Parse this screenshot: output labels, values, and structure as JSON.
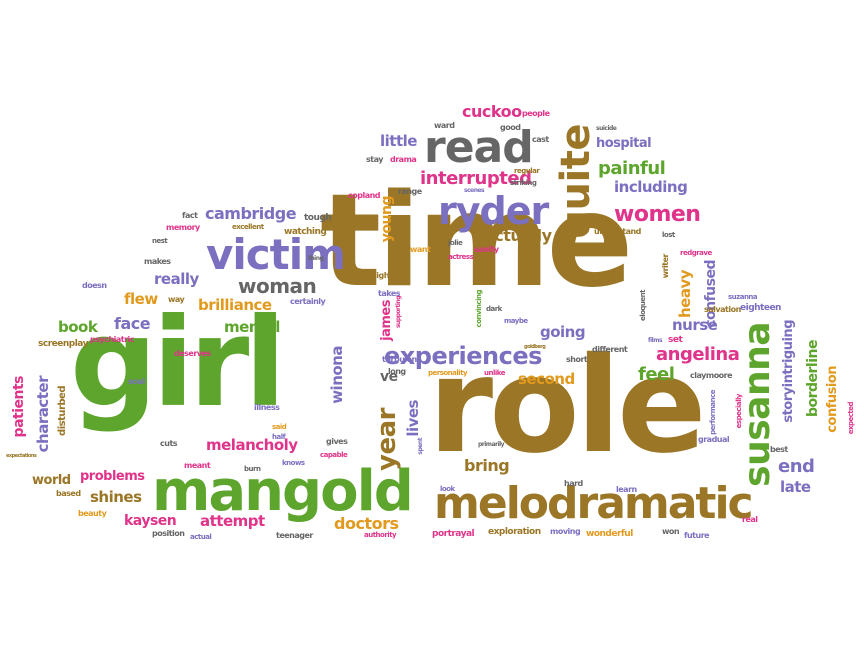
{
  "cloud": {
    "colors": {
      "brown": "#9a7626",
      "green": "#5da52c",
      "purple": "#7b6fc0",
      "pink": "#e0338a",
      "orange": "#e29a1e",
      "gray": "#666666"
    },
    "words": [
      {
        "text": "time",
        "color": "#9a7626"
      },
      {
        "text": "role",
        "color": "#9a7626"
      },
      {
        "text": "girl",
        "color": "#5da52c"
      },
      {
        "text": "mangold",
        "color": "#5da52c"
      },
      {
        "text": "melodramatic",
        "color": "#9a7626"
      },
      {
        "text": "victim",
        "color": "#7b6fc0"
      },
      {
        "text": "read",
        "color": "#666666"
      },
      {
        "text": "ryder",
        "color": "#7b6fc0"
      },
      {
        "text": "quite",
        "color": "#9a7626"
      },
      {
        "text": "susanna",
        "color": "#5da52c"
      },
      {
        "text": "experiences",
        "color": "#7b6fc0"
      },
      {
        "text": "year",
        "color": "#9a7626"
      },
      {
        "text": "women",
        "color": "#e0338a"
      },
      {
        "text": "interrupted",
        "color": "#e0338a"
      },
      {
        "text": "cambridge",
        "color": "#7b6fc0"
      },
      {
        "text": "woman",
        "color": "#666666"
      },
      {
        "text": "cuckoo",
        "color": "#e0338a"
      },
      {
        "text": "little",
        "color": "#7b6fc0"
      },
      {
        "text": "painful",
        "color": "#5da52c"
      },
      {
        "text": "including",
        "color": "#7b6fc0"
      },
      {
        "text": "hospital",
        "color": "#7b6fc0"
      },
      {
        "text": "actually",
        "color": "#9a7626"
      },
      {
        "text": "angelina",
        "color": "#e0338a"
      },
      {
        "text": "melancholy",
        "color": "#e0338a"
      },
      {
        "text": "doctors",
        "color": "#e29a1e"
      },
      {
        "text": "attempt",
        "color": "#e0338a"
      },
      {
        "text": "brilliance",
        "color": "#e29a1e"
      },
      {
        "text": "really",
        "color": "#7b6fc0"
      },
      {
        "text": "mental",
        "color": "#5da52c"
      },
      {
        "text": "face",
        "color": "#7b6fc0"
      },
      {
        "text": "book",
        "color": "#5da52c"
      },
      {
        "text": "flew",
        "color": "#e29a1e"
      },
      {
        "text": "end",
        "color": "#7b6fc0"
      },
      {
        "text": "late",
        "color": "#7b6fc0"
      },
      {
        "text": "feel",
        "color": "#5da52c"
      },
      {
        "text": "nurse",
        "color": "#7b6fc0"
      },
      {
        "text": "going",
        "color": "#7b6fc0"
      },
      {
        "text": "second",
        "color": "#e29a1e"
      },
      {
        "text": "bring",
        "color": "#9a7626"
      },
      {
        "text": "lives",
        "color": "#7b6fc0"
      },
      {
        "text": "ve",
        "color": "#666666"
      },
      {
        "text": "winona",
        "color": "#7b6fc0"
      },
      {
        "text": "james",
        "color": "#e0338a"
      },
      {
        "text": "young",
        "color": "#e29a1e"
      },
      {
        "text": "heavy",
        "color": "#e29a1e"
      },
      {
        "text": "confused",
        "color": "#7b6fc0"
      },
      {
        "text": "storyintriguing",
        "color": "#7b6fc0"
      },
      {
        "text": "borderline",
        "color": "#5da52c"
      },
      {
        "text": "confusion",
        "color": "#e29a1e"
      },
      {
        "text": "world",
        "color": "#9a7626"
      },
      {
        "text": "problems",
        "color": "#e0338a"
      },
      {
        "text": "shines",
        "color": "#9a7626"
      },
      {
        "text": "kaysen",
        "color": "#e0338a"
      },
      {
        "text": "character",
        "color": "#7b6fc0"
      },
      {
        "text": "patients",
        "color": "#e0338a"
      },
      {
        "text": "disturbed",
        "color": "#9a7626"
      },
      {
        "text": "screenplay",
        "color": "#9a7626"
      },
      {
        "text": "psychiatric",
        "color": "#e0338a"
      },
      {
        "text": "deserves",
        "color": "#e0338a"
      },
      {
        "text": "soul",
        "color": "#7b6fc0"
      },
      {
        "text": "illness",
        "color": "#7b6fc0"
      },
      {
        "text": "cuts",
        "color": "#666666"
      },
      {
        "text": "meant",
        "color": "#e0338a"
      },
      {
        "text": "based",
        "color": "#9a7626"
      },
      {
        "text": "beauty",
        "color": "#e29a1e"
      },
      {
        "text": "position",
        "color": "#666666"
      },
      {
        "text": "actual",
        "color": "#7b6fc0"
      },
      {
        "text": "teenager",
        "color": "#666666"
      },
      {
        "text": "authority",
        "color": "#e0338a"
      },
      {
        "text": "portrayal",
        "color": "#e0338a"
      },
      {
        "text": "exploration",
        "color": "#9a7626"
      },
      {
        "text": "moving",
        "color": "#7b6fc0"
      },
      {
        "text": "wonderful",
        "color": "#e29a1e"
      },
      {
        "text": "won",
        "color": "#666666"
      },
      {
        "text": "future",
        "color": "#7b6fc0"
      },
      {
        "text": "real",
        "color": "#e0338a"
      },
      {
        "text": "gradual",
        "color": "#7b6fc0"
      },
      {
        "text": "best",
        "color": "#666666"
      },
      {
        "text": "set",
        "color": "#e0338a"
      },
      {
        "text": "films",
        "color": "#7b6fc0"
      },
      {
        "text": "claymoore",
        "color": "#666666"
      },
      {
        "text": "eighteen",
        "color": "#7b6fc0"
      },
      {
        "text": "salvation",
        "color": "#9a7626"
      },
      {
        "text": "suzanna",
        "color": "#7b6fc0"
      },
      {
        "text": "especially",
        "color": "#e0338a"
      },
      {
        "text": "performance",
        "color": "#7b6fc0"
      },
      {
        "text": "eloquent",
        "color": "#666666"
      },
      {
        "text": "writer",
        "color": "#9a7626"
      },
      {
        "text": "redgrave",
        "color": "#e0338a"
      },
      {
        "text": "lost",
        "color": "#666666"
      },
      {
        "text": "understand",
        "color": "#9a7626"
      },
      {
        "text": "sanity",
        "color": "#e0338a"
      },
      {
        "text": "jolie",
        "color": "#666666"
      },
      {
        "text": "actress",
        "color": "#e0338a"
      },
      {
        "text": "want",
        "color": "#e29a1e"
      },
      {
        "text": "light",
        "color": "#9a7626"
      },
      {
        "text": "takes",
        "color": "#7b6fc0"
      },
      {
        "text": "supporting",
        "color": "#e0338a"
      },
      {
        "text": "convincing",
        "color": "#5da52c"
      },
      {
        "text": "dark",
        "color": "#666666"
      },
      {
        "text": "maybe",
        "color": "#7b6fc0"
      },
      {
        "text": "different",
        "color": "#666666"
      },
      {
        "text": "short",
        "color": "#666666"
      },
      {
        "text": "unlike",
        "color": "#e0338a"
      },
      {
        "text": "personality",
        "color": "#e29a1e"
      },
      {
        "text": "turbulent",
        "color": "#7b6fc0"
      },
      {
        "text": "long",
        "color": "#666666"
      },
      {
        "text": "primarily",
        "color": "#666666"
      },
      {
        "text": "spent",
        "color": "#7b6fc0"
      },
      {
        "text": "look",
        "color": "#7b6fc0"
      },
      {
        "text": "hard",
        "color": "#666666"
      },
      {
        "text": "learn",
        "color": "#7b6fc0"
      },
      {
        "text": "gives",
        "color": "#666666"
      },
      {
        "text": "capable",
        "color": "#e0338a"
      },
      {
        "text": "knows",
        "color": "#7b6fc0"
      },
      {
        "text": "burn",
        "color": "#666666"
      },
      {
        "text": "said",
        "color": "#e29a1e"
      },
      {
        "text": "half",
        "color": "#7b6fc0"
      },
      {
        "text": "certainly",
        "color": "#7b6fc0"
      },
      {
        "text": "way",
        "color": "#9a7626"
      },
      {
        "text": "doesn",
        "color": "#7b6fc0"
      },
      {
        "text": "makes",
        "color": "#666666"
      },
      {
        "text": "nest",
        "color": "#666666"
      },
      {
        "text": "memory",
        "color": "#e0338a"
      },
      {
        "text": "fact",
        "color": "#666666"
      },
      {
        "text": "excellent",
        "color": "#9a7626"
      },
      {
        "text": "tough",
        "color": "#666666"
      },
      {
        "text": "watching",
        "color": "#9a7626"
      },
      {
        "text": "copland",
        "color": "#e0338a"
      },
      {
        "text": "stay",
        "color": "#666666"
      },
      {
        "text": "drama",
        "color": "#e0338a"
      },
      {
        "text": "range",
        "color": "#666666"
      },
      {
        "text": "scenes",
        "color": "#7b6fc0"
      },
      {
        "text": "regular",
        "color": "#9a7626"
      },
      {
        "text": "striking",
        "color": "#666666"
      },
      {
        "text": "ward",
        "color": "#666666"
      },
      {
        "text": "good",
        "color": "#666666"
      },
      {
        "text": "people",
        "color": "#e0338a"
      },
      {
        "text": "cast",
        "color": "#666666"
      },
      {
        "text": "suicide",
        "color": "#666666"
      },
      {
        "text": "goldberg",
        "color": "#9a7626"
      },
      {
        "text": "expected",
        "color": "#e0338a"
      },
      {
        "text": "expectations",
        "color": "#9a7626"
      },
      {
        "text": "thing",
        "color": "#666666"
      }
    ]
  }
}
